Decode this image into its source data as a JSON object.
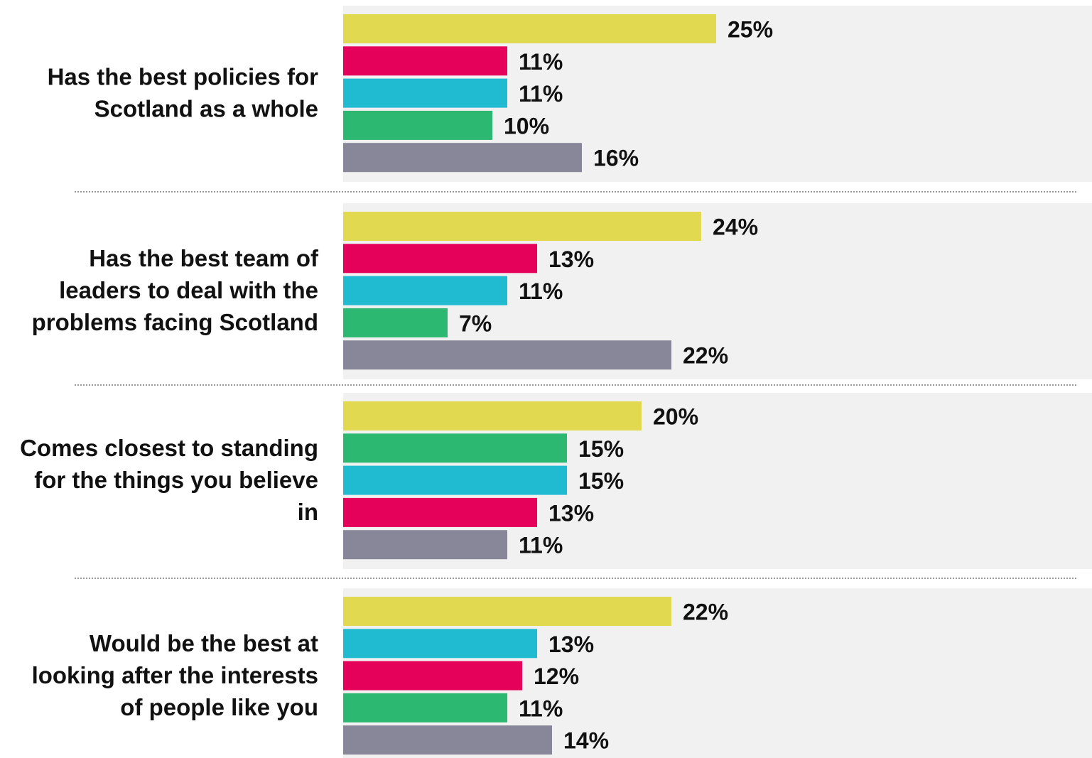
{
  "chart_data": {
    "type": "bar",
    "orientation": "horizontal",
    "title": "",
    "xlabel": "",
    "ylabel": "",
    "xlim": [
      0,
      49
    ],
    "grid": false,
    "legend": "none",
    "value_format": "{v}%",
    "colors": {
      "yellow": "#e1da50",
      "red": "#e5005a",
      "cyan": "#20bad1",
      "green": "#2db872",
      "grey": "#878799",
      "panel": "#f1f1f1",
      "divider": "#999999",
      "text": "#111111"
    },
    "groups": [
      {
        "label_lines": [
          "Has the best policies for",
          "Scotland as a whole"
        ],
        "bars": [
          {
            "value": 25,
            "label": "25%",
            "color": "yellow"
          },
          {
            "value": 11,
            "label": "11%",
            "color": "red"
          },
          {
            "value": 11,
            "label": "11%",
            "color": "cyan"
          },
          {
            "value": 10,
            "label": "10%",
            "color": "green"
          },
          {
            "value": 16,
            "label": "16%",
            "color": "grey"
          }
        ]
      },
      {
        "label_lines": [
          "Has the best team of",
          "leaders to deal with the",
          "problems facing Scotland"
        ],
        "bars": [
          {
            "value": 24,
            "label": "24%",
            "color": "yellow"
          },
          {
            "value": 13,
            "label": "13%",
            "color": "red"
          },
          {
            "value": 11,
            "label": "11%",
            "color": "cyan"
          },
          {
            "value": 7,
            "label": "7%",
            "color": "green"
          },
          {
            "value": 22,
            "label": "22%",
            "color": "grey"
          }
        ]
      },
      {
        "label_lines": [
          "Comes closest to standing",
          "for the things you believe",
          "in"
        ],
        "bars": [
          {
            "value": 20,
            "label": "20%",
            "color": "yellow"
          },
          {
            "value": 15,
            "label": "15%",
            "color": "green"
          },
          {
            "value": 15,
            "label": "15%",
            "color": "cyan"
          },
          {
            "value": 13,
            "label": "13%",
            "color": "red"
          },
          {
            "value": 11,
            "label": "11%",
            "color": "grey"
          }
        ]
      },
      {
        "label_lines": [
          "Would be the best at",
          "looking after the interests",
          "of people like you"
        ],
        "bars": [
          {
            "value": 22,
            "label": "22%",
            "color": "yellow"
          },
          {
            "value": 13,
            "label": "13%",
            "color": "cyan"
          },
          {
            "value": 12,
            "label": "12%",
            "color": "red"
          },
          {
            "value": 11,
            "label": "11%",
            "color": "green"
          },
          {
            "value": 14,
            "label": "14%",
            "color": "grey"
          }
        ]
      }
    ]
  }
}
